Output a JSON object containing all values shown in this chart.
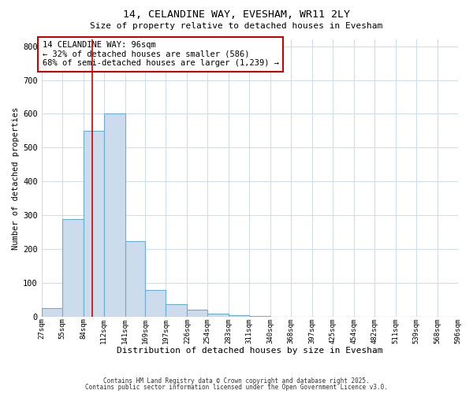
{
  "title1": "14, CELANDINE WAY, EVESHAM, WR11 2LY",
  "title2": "Size of property relative to detached houses in Evesham",
  "xlabel": "Distribution of detached houses by size in Evesham",
  "ylabel": "Number of detached properties",
  "bar_values": [
    25,
    290,
    550,
    600,
    225,
    80,
    37,
    22,
    10,
    5,
    2,
    0,
    0,
    0,
    0,
    0,
    0,
    0,
    0,
    0
  ],
  "bin_labels": [
    "27sqm",
    "55sqm",
    "84sqm",
    "112sqm",
    "141sqm",
    "169sqm",
    "197sqm",
    "226sqm",
    "254sqm",
    "283sqm",
    "311sqm",
    "340sqm",
    "368sqm",
    "397sqm",
    "425sqm",
    "454sqm",
    "482sqm",
    "511sqm",
    "539sqm",
    "568sqm",
    "596sqm"
  ],
  "bin_edges": [
    27,
    55,
    84,
    112,
    141,
    169,
    197,
    226,
    254,
    283,
    311,
    340,
    368,
    397,
    425,
    454,
    482,
    511,
    539,
    568,
    596
  ],
  "bar_color": "#ccdcec",
  "bar_edge_color": "#6aadd5",
  "red_line_x": 96,
  "ylim": [
    0,
    820
  ],
  "yticks": [
    0,
    100,
    200,
    300,
    400,
    500,
    600,
    700,
    800
  ],
  "annotation_title": "14 CELANDINE WAY: 96sqm",
  "annotation_line1": "← 32% of detached houses are smaller (586)",
  "annotation_line2": "68% of semi-detached houses are larger (1,239) →",
  "footer1": "Contains HM Land Registry data © Crown copyright and database right 2025.",
  "footer2": "Contains public sector information licensed under the Open Government Licence v3.0.",
  "background_color": "#ffffff",
  "grid_color": "#d0dce8"
}
